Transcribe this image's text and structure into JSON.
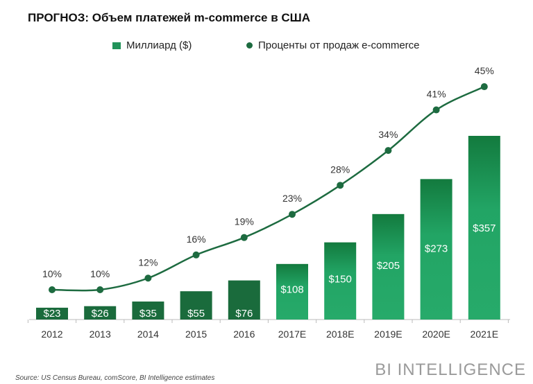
{
  "chart_data": {
    "type": "bar",
    "title": "ПРОГНОЗ: Объем платежей m-commerce в США",
    "categories": [
      "2012",
      "2013",
      "2014",
      "2015",
      "2016",
      "2017E",
      "2018E",
      "2019E",
      "2020E",
      "2021E"
    ],
    "series": [
      {
        "name": "Миллиард ($)",
        "type": "bar",
        "values": [
          23,
          26,
          35,
          55,
          76,
          108,
          150,
          205,
          273,
          357
        ],
        "labels": [
          "$23",
          "$26",
          "$35",
          "$55",
          "$76",
          "$108",
          "$150",
          "$205",
          "$273",
          "$357"
        ]
      },
      {
        "name": "Проценты от продаж e-commerce",
        "type": "line",
        "values": [
          10,
          10,
          12,
          16,
          19,
          23,
          28,
          34,
          41,
          45
        ],
        "labels": [
          "10%",
          "10%",
          "12%",
          "16%",
          "19%",
          "23%",
          "28%",
          "34%",
          "41%",
          "45%"
        ]
      }
    ],
    "legend": "top",
    "grid": false,
    "colors": {
      "actual": "#1a6b3c",
      "estimate": "#22a565",
      "line": "#1d6b40"
    }
  },
  "source": "Source: US Census Bureau, comScore, BI Intelligence estimates",
  "brand": "BI INTELLIGENCE"
}
